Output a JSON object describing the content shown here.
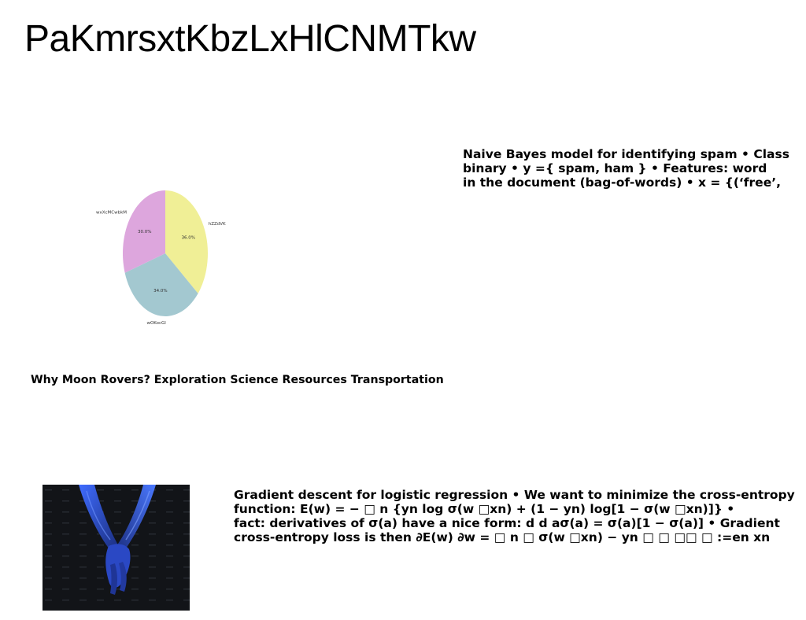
{
  "page": {
    "title": "PaKmrsxtKbzLxHlCNMTkw"
  },
  "naive_bayes": {
    "lines": [
      "Naive Bayes model for identifying spam • Class",
      "binary • y ={ spam, ham } • Features: word",
      "in the document (bag-of-words) • x = {(‘free’,"
    ]
  },
  "moon_rovers": {
    "text": "Why Moon Rovers? Exploration Science Resources Transportation"
  },
  "gradient": {
    "lines": [
      "Gradient descent for logistic regression • We want to minimize the cross-entropy",
      "function: E(w) = − □ n {yn log σ(w □xn) + (1 − yn) log[1 − σ(w □xn)]} •",
      "fact: derivatives of σ(a) have a nice form: d d aσ(a) = σ(a)[1 − σ(a)] • Gradient",
      "cross-entropy loss is then ∂E(w) ∂w = □ n □ σ(w □xn) − yn □ □ □□ □ :=en xn"
    ]
  },
  "chart_data": {
    "type": "pie",
    "title": "",
    "categories": [
      "hZZdVK",
      "wOKocGl",
      "wxXcMCwbkM"
    ],
    "values": [
      36.0,
      34.0,
      30.0
    ],
    "labels": [
      "36.0%",
      "34.0%",
      "30.0%"
    ],
    "colors": [
      "#f0ef96",
      "#a3c8d0",
      "#dda6dd"
    ],
    "start_angle_deg": 90,
    "direction": "clockwise"
  },
  "photo": {
    "icon": "holding-hands-photo",
    "tint": "#2e5bff"
  }
}
